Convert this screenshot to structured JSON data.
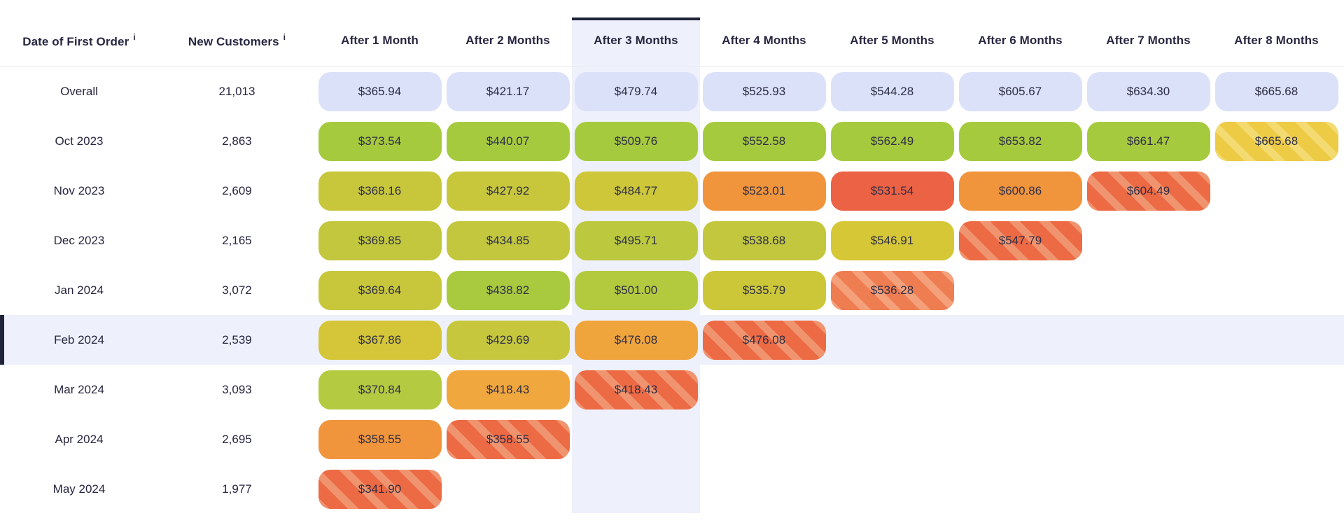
{
  "colors": {
    "accent_dark": "#20243A",
    "header_text": "#272742",
    "value_text": "#2E2E45",
    "column_highlight_bg": "#EEF0FB",
    "row_highlight_bg": "#EEF1FB",
    "header_divider": "#E9E9EF",
    "overall_pill_bg": "#DBE1F8",
    "green": "#A6CA3E",
    "yellow_green": "#C8C73B",
    "yellow": "#D6C737",
    "amber": "#F0A43C",
    "orange": "#F0953C",
    "red": "#EC6245"
  },
  "table": {
    "info_icon": "i",
    "selected_column": "After 3 Months",
    "highlighted_row": "Feb 2024",
    "columns": [
      {
        "label": "Date of First Order",
        "info": true
      },
      {
        "label": "New Customers",
        "info": true
      },
      {
        "label": "After 1 Month"
      },
      {
        "label": "After 2 Months"
      },
      {
        "label": "After 3 Months",
        "selected": true
      },
      {
        "label": "After 4 Months"
      },
      {
        "label": "After 5 Months"
      },
      {
        "label": "After 6 Months"
      },
      {
        "label": "After 7 Months"
      },
      {
        "label": "After 8 Months"
      }
    ],
    "rows": [
      {
        "label": "Overall",
        "customers": "21,013",
        "cells": [
          {
            "value": "$365.94",
            "color": "#DBE1F8"
          },
          {
            "value": "$421.17",
            "color": "#DBE1F8"
          },
          {
            "value": "$479.74",
            "color": "#DBE1F8"
          },
          {
            "value": "$525.93",
            "color": "#DBE1F8"
          },
          {
            "value": "$544.28",
            "color": "#DBE1F8"
          },
          {
            "value": "$605.67",
            "color": "#DBE1F8"
          },
          {
            "value": "$634.30",
            "color": "#DBE1F8"
          },
          {
            "value": "$665.68",
            "color": "#DBE1F8"
          }
        ]
      },
      {
        "label": "Oct 2023",
        "customers": "2,863",
        "cells": [
          {
            "value": "$373.54",
            "color": "#A6CA3E"
          },
          {
            "value": "$440.07",
            "color": "#A6CA3E"
          },
          {
            "value": "$509.76",
            "color": "#A6CA3E"
          },
          {
            "value": "$552.58",
            "color": "#A6CA3E"
          },
          {
            "value": "$562.49",
            "color": "#A6CA3E"
          },
          {
            "value": "$653.82",
            "color": "#A6CA3E"
          },
          {
            "value": "$661.47",
            "color": "#A6CA3E"
          },
          {
            "value": "$665.68",
            "color": "#EDCB45",
            "striped": true,
            "stripe": "#F3DB72"
          }
        ]
      },
      {
        "label": "Nov 2023",
        "customers": "2,609",
        "cells": [
          {
            "value": "$368.16",
            "color": "#C8C73B"
          },
          {
            "value": "$427.92",
            "color": "#C8C73B"
          },
          {
            "value": "$484.77",
            "color": "#CDC739"
          },
          {
            "value": "$523.01",
            "color": "#F0953C"
          },
          {
            "value": "$531.54",
            "color": "#EC6245"
          },
          {
            "value": "$600.86",
            "color": "#F0953C"
          },
          {
            "value": "$604.49",
            "color": "#EC6A44",
            "striped": true,
            "stripe": "#F0946F"
          }
        ]
      },
      {
        "label": "Dec 2023",
        "customers": "2,165",
        "cells": [
          {
            "value": "$369.85",
            "color": "#C2C73D"
          },
          {
            "value": "$434.85",
            "color": "#C2C73D"
          },
          {
            "value": "$495.71",
            "color": "#BCC93E"
          },
          {
            "value": "$538.68",
            "color": "#C2C73D"
          },
          {
            "value": "$546.91",
            "color": "#D6C737"
          },
          {
            "value": "$547.79",
            "color": "#EC6A44",
            "striped": true,
            "stripe": "#F0946F"
          }
        ]
      },
      {
        "label": "Jan 2024",
        "customers": "3,072",
        "cells": [
          {
            "value": "$369.64",
            "color": "#C8C73B"
          },
          {
            "value": "$438.82",
            "color": "#A9CA3E"
          },
          {
            "value": "$501.00",
            "color": "#B3CA3F"
          },
          {
            "value": "$535.79",
            "color": "#CCC739"
          },
          {
            "value": "$536.28",
            "color": "#EF7D52",
            "striped": true,
            "stripe": "#F4A07B"
          }
        ]
      },
      {
        "label": "Feb 2024",
        "customers": "2,539",
        "highlighted": true,
        "cells": [
          {
            "value": "$367.86",
            "color": "#D4C638"
          },
          {
            "value": "$429.69",
            "color": "#C6C73C"
          },
          {
            "value": "$476.08",
            "color": "#F0A43C"
          },
          {
            "value": "$476.08",
            "color": "#EC6A44",
            "striped": true,
            "stripe": "#F0946F"
          }
        ]
      },
      {
        "label": "Mar 2024",
        "customers": "3,093",
        "cells": [
          {
            "value": "$370.84",
            "color": "#B4CA41"
          },
          {
            "value": "$418.43",
            "color": "#F0A73D"
          },
          {
            "value": "$418.43",
            "color": "#EC6A44",
            "striped": true,
            "stripe": "#F0946F"
          }
        ]
      },
      {
        "label": "Apr 2024",
        "customers": "2,695",
        "cells": [
          {
            "value": "$358.55",
            "color": "#F0953C"
          },
          {
            "value": "$358.55",
            "color": "#EC6A44",
            "striped": true,
            "stripe": "#F0946F"
          }
        ]
      },
      {
        "label": "May 2024",
        "customers": "1,977",
        "cells": [
          {
            "value": "$341.90",
            "color": "#EC6A44",
            "striped": true,
            "stripe": "#F0946F"
          }
        ]
      }
    ]
  },
  "chart_data": {
    "type": "heatmap",
    "row_header": "Date of First Order",
    "customers_header": "New Customers",
    "columns": [
      "After 1 Month",
      "After 2 Months",
      "After 3 Months",
      "After 4 Months",
      "After 5 Months",
      "After 6 Months",
      "After 7 Months",
      "After 8 Months"
    ],
    "selected_column": "After 3 Months",
    "highlighted_row": "Feb 2024",
    "rows": [
      {
        "cohort": "Overall",
        "new_customers": 21013,
        "values": [
          365.94,
          421.17,
          479.74,
          525.93,
          544.28,
          605.67,
          634.3,
          665.68
        ],
        "incomplete_last": false
      },
      {
        "cohort": "Oct 2023",
        "new_customers": 2863,
        "values": [
          373.54,
          440.07,
          509.76,
          552.58,
          562.49,
          653.82,
          661.47,
          665.68
        ],
        "incomplete_last": true
      },
      {
        "cohort": "Nov 2023",
        "new_customers": 2609,
        "values": [
          368.16,
          427.92,
          484.77,
          523.01,
          531.54,
          600.86,
          604.49
        ],
        "incomplete_last": true
      },
      {
        "cohort": "Dec 2023",
        "new_customers": 2165,
        "values": [
          369.85,
          434.85,
          495.71,
          538.68,
          546.91,
          547.79
        ],
        "incomplete_last": true
      },
      {
        "cohort": "Jan 2024",
        "new_customers": 3072,
        "values": [
          369.64,
          438.82,
          501.0,
          535.79,
          536.28
        ],
        "incomplete_last": true
      },
      {
        "cohort": "Feb 2024",
        "new_customers": 2539,
        "values": [
          367.86,
          429.69,
          476.08,
          476.08
        ],
        "incomplete_last": true
      },
      {
        "cohort": "Mar 2024",
        "new_customers": 3093,
        "values": [
          370.84,
          418.43,
          418.43
        ],
        "incomplete_last": true
      },
      {
        "cohort": "Apr 2024",
        "new_customers": 2695,
        "values": [
          358.55,
          358.55
        ],
        "incomplete_last": true
      },
      {
        "cohort": "May 2024",
        "new_customers": 1977,
        "values": [
          341.9
        ],
        "incomplete_last": true
      }
    ]
  }
}
